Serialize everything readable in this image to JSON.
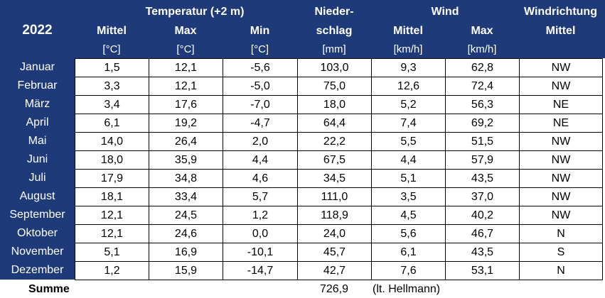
{
  "header": {
    "year": "2022",
    "groups": {
      "temperature": "Temperatur (+2 m)",
      "precip_top": "Nieder-",
      "wind": "Wind",
      "winddir_top": "Windrichtung"
    },
    "columns": {
      "temp_mittel": "Mittel",
      "temp_max": "Max",
      "temp_min": "Min",
      "precip": "schlag",
      "wind_mittel": "Mittel",
      "wind_max": "Max",
      "winddir": "Mittel"
    },
    "units": {
      "temp_mittel": "[°C]",
      "temp_max": "[°C]",
      "temp_min": "[°C]",
      "precip": "[mm]",
      "wind_mittel": "[km/h]",
      "wind_max": "[km/h]"
    }
  },
  "rows": [
    {
      "month": "Januar",
      "cells": [
        "1,5",
        "12,1",
        "-5,6",
        "103,0",
        "9,3",
        "62,8",
        "NW"
      ]
    },
    {
      "month": "Februar",
      "cells": [
        "3,3",
        "12,1",
        "-5,0",
        "75,0",
        "12,6",
        "72,4",
        "NW"
      ]
    },
    {
      "month": "März",
      "cells": [
        "3,4",
        "17,6",
        "-7,0",
        "18,0",
        "5,2",
        "56,3",
        "NE"
      ]
    },
    {
      "month": "April",
      "cells": [
        "6,1",
        "19,2",
        "-4,7",
        "64,4",
        "7,4",
        "69,2",
        "NE"
      ]
    },
    {
      "month": "Mai",
      "cells": [
        "14,0",
        "26,4",
        "2,0",
        "22,2",
        "5,5",
        "51,5",
        "NW"
      ]
    },
    {
      "month": "Juni",
      "cells": [
        "18,0",
        "35,9",
        "4,4",
        "67,5",
        "4,4",
        "57,9",
        "NW"
      ]
    },
    {
      "month": "Juli",
      "cells": [
        "17,9",
        "34,8",
        "4,6",
        "34,5",
        "5,1",
        "43,5",
        "NW"
      ]
    },
    {
      "month": "August",
      "cells": [
        "18,1",
        "33,4",
        "5,7",
        "111,0",
        "3,5",
        "37,0",
        "NW"
      ]
    },
    {
      "month": "September",
      "cells": [
        "12,1",
        "24,5",
        "1,2",
        "118,9",
        "4,5",
        "40,2",
        "NW"
      ]
    },
    {
      "month": "Oktober",
      "cells": [
        "12,1",
        "24,6",
        "0,0",
        "24,0",
        "5,6",
        "46,7",
        "N"
      ]
    },
    {
      "month": "November",
      "cells": [
        "5,1",
        "16,9",
        "-10,1",
        "45,7",
        "6,1",
        "43,5",
        "S"
      ]
    },
    {
      "month": "Dezember",
      "cells": [
        "1,2",
        "15,9",
        "-14,7",
        "42,7",
        "7,6",
        "53,1",
        "N"
      ]
    }
  ],
  "summary": {
    "label": "Summe",
    "precip_total": "726,9",
    "note": "(lt. Hellmann)"
  },
  "colors": {
    "header_bg": "#1f3a78",
    "header_text": "#ffffff",
    "grid_line": "#000000"
  }
}
